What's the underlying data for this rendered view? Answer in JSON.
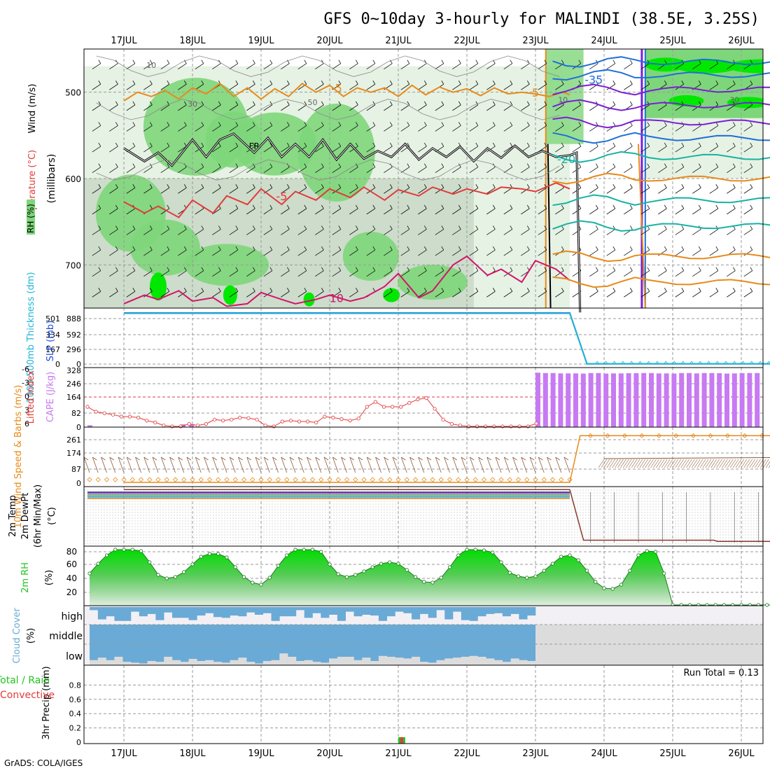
{
  "title": "GFS 0~10day 3-hourly for MALINDI (38.5E, 3.25S)",
  "footer": "GrADS: COLA/IGES",
  "colors": {
    "grid": "#9a9a9a",
    "rh_light": "#e6f2e4",
    "rh_mid": "#cddccb",
    "rh_green": "#7ed67a",
    "rh_bright": "#00e800",
    "temp_orange": "#e88a1a",
    "temp_red": "#e23b3b",
    "temp_magenta": "#d3146c",
    "temp_teal": "#17b3a3",
    "temp_blue": "#1e6fd9",
    "temp_purple": "#7a1fd6",
    "slp": "#1f4bd6",
    "thickness": "#1fb6d6",
    "cape": "#c77af2",
    "lifted": "#e23b3b",
    "wind10": "#e88a1a",
    "cloud": "#6aaad6",
    "cloud_empty": "#dcdcdc",
    "rh2m": "#22c322",
    "precip_total": "#22c322",
    "precip_conv": "#e23b3b"
  },
  "chart_data": [
    {
      "type": "heatmap",
      "panel": "upper_air",
      "x_dates": [
        "17JUL",
        "18JUL",
        "19JUL",
        "20JUL",
        "21JUL",
        "22JUL",
        "23JUL",
        "24JUL",
        "25JUL",
        "26JUL"
      ],
      "ylabel": "(millibars)",
      "side_labels": [
        "Wind (m/s)",
        "Temperature (°C)",
        "RH (%)"
      ],
      "y_ticks": [
        500,
        600,
        700
      ],
      "ylim": [
        750,
        450
      ],
      "contour_labels": {
        "temperature": [
          "-5",
          "5",
          "-5",
          "10",
          "-35",
          "-20"
        ],
        "rh": [
          "10",
          "30",
          "50",
          "10",
          "30"
        ],
        "freezing": "FR"
      },
      "series": [
        {
          "name": "FR",
          "x_days": [
            0,
            0.3,
            0.5,
            0.7,
            1,
            1.2,
            1.4,
            1.6,
            1.9,
            2.1,
            2.3,
            2.5,
            2.7,
            2.9,
            3.1,
            3.3,
            3.5,
            3.7,
            3.9,
            4.1,
            4.3,
            4.5,
            4.7,
            4.9,
            5.1,
            5.3,
            5.5,
            5.7,
            5.9,
            6.1,
            6.3,
            6.5,
            6.6,
            6.65
          ],
          "values": [
            565,
            580,
            570,
            585,
            555,
            575,
            555,
            548,
            570,
            553,
            575,
            560,
            575,
            555,
            578,
            560,
            577,
            568,
            575,
            560,
            578,
            565,
            575,
            563,
            580,
            565,
            576,
            562,
            575,
            568,
            575,
            573,
            570,
            755
          ]
        },
        {
          "name": "-5",
          "x_days": [
            0,
            0.2,
            0.4,
            0.6,
            0.8,
            1,
            1.2,
            1.4,
            1.6,
            1.8,
            2,
            2.2,
            2.4,
            2.6,
            2.8,
            3,
            3.2,
            3.4,
            3.6,
            3.8,
            4,
            4.2,
            4.4,
            4.6,
            4.8,
            5,
            5.2,
            5.4,
            5.6,
            5.8,
            6,
            6.2,
            6.4,
            6.5
          ],
          "values": [
            510,
            500,
            505,
            498,
            508,
            495,
            502,
            490,
            505,
            495,
            508,
            496,
            505,
            490,
            500,
            492,
            505,
            495,
            500,
            495,
            505,
            492,
            503,
            494,
            500,
            496,
            504,
            495,
            502,
            500,
            502,
            505,
            500,
            503
          ]
        },
        {
          "name": "-5b",
          "x_days": [
            0,
            0.3,
            0.5,
            0.8,
            1,
            1.3,
            1.5,
            1.8,
            2,
            2.3,
            2.5,
            2.8,
            3,
            3.3,
            3.5,
            3.8,
            4,
            4.3,
            4.5,
            4.8,
            5,
            5.3,
            5.5,
            5.8,
            6,
            6.3,
            6.5
          ],
          "values": [
            627,
            640,
            632,
            645,
            625,
            640,
            620,
            630,
            612,
            630,
            615,
            625,
            612,
            622,
            610,
            625,
            613,
            620,
            610,
            618,
            612,
            618,
            610,
            612,
            615,
            605,
            612
          ]
        },
        {
          "name": "10",
          "x_days": [
            0,
            0.3,
            0.5,
            0.8,
            1,
            1.3,
            1.5,
            1.8,
            2,
            2.3,
            2.5,
            2.8,
            3,
            3.3,
            3.5,
            3.8,
            4,
            4.3,
            4.5,
            4.8,
            5,
            5.3,
            5.5,
            5.8,
            6,
            6.3,
            6.5
          ],
          "values": [
            745,
            735,
            740,
            730,
            742,
            738,
            748,
            745,
            732,
            740,
            745,
            740,
            735,
            742,
            738,
            725,
            710,
            738,
            730,
            700,
            690,
            712,
            705,
            720,
            695,
            705,
            718
          ]
        }
      ],
      "right_block_series": [
        {
          "name": "-35",
          "y": 465
        },
        {
          "name": "-35b",
          "y": 480
        },
        {
          "name": "-30",
          "y": 497
        },
        {
          "name": "-30b",
          "y": 515
        },
        {
          "name": "-25",
          "y": 535
        },
        {
          "name": "-25b",
          "y": 553
        },
        {
          "name": "-20",
          "y": 575
        },
        {
          "name": "-15",
          "y": 600
        },
        {
          "name": "-10",
          "y": 625
        },
        {
          "name": "-5",
          "y": 655
        },
        {
          "name": "0",
          "y": 690
        },
        {
          "name": "5",
          "y": 720
        }
      ]
    },
    {
      "type": "line",
      "panel": "slp_thickness",
      "ylabel_left": "1000-500mb Thickness (dm)",
      "ylabel_right": "SLP (mb)",
      "left_ticks": [
        "501",
        "334",
        "167",
        "0"
      ],
      "right_ticks": [
        "888",
        "592",
        "296",
        "0"
      ],
      "ylim": [
        0,
        1000
      ],
      "series": [
        {
          "name": "SLP",
          "x_days": [
            0,
            6.5,
            6.75,
            10
          ],
          "values": [
            1012,
            1012,
            5,
            5
          ]
        },
        {
          "name": "Thickness",
          "x_days": [
            0,
            6.5,
            6.75,
            10
          ],
          "values": [
            1005,
            1005,
            6,
            6
          ]
        }
      ]
    },
    {
      "type": "bar",
      "panel": "cape_lifted",
      "ylabel_left": "Lifted Index",
      "ylabel_right": "CAPE (J/kg)",
      "left_ticks": [
        "-6",
        "-3",
        "0",
        "3",
        "6"
      ],
      "right_ticks": [
        "328",
        "246",
        "164",
        "82",
        "0"
      ],
      "ylim_cape": [
        0,
        328
      ],
      "lifted_index": [
        2,
        3,
        3.3,
        3.6,
        4,
        4,
        4.2,
        4.8,
        5.2,
        5.8,
        6,
        6,
        5.5,
        5.8,
        5.5,
        4.6,
        4.8,
        4.6,
        4.2,
        4.3,
        4.6,
        5.8,
        6,
        5,
        4.8,
        5,
        5,
        5.2,
        4,
        4.2,
        4.5,
        4.8,
        4.4,
        2,
        1,
        2,
        2,
        2,
        1.2,
        0.5,
        0.2,
        2.4,
        4.6,
        5.5,
        5.8,
        6,
        6,
        6,
        6,
        6,
        6,
        6,
        6,
        5.4
      ],
      "cape_left": [
        10,
        0,
        0,
        0,
        0,
        0,
        0,
        0,
        0,
        0,
        0,
        15,
        15,
        0,
        0,
        0,
        0,
        0,
        0,
        0,
        0,
        0,
        0,
        0,
        0,
        0,
        0,
        0,
        0,
        0,
        0,
        0,
        0,
        0,
        0,
        0,
        0,
        0,
        0,
        0,
        0,
        0,
        0,
        0,
        0,
        0,
        0,
        0,
        0,
        0,
        0,
        0,
        0,
        5
      ],
      "cape_right": [
        300,
        298,
        298,
        296,
        296,
        296,
        295,
        298,
        298,
        295,
        296,
        296,
        297,
        297,
        298,
        298,
        296,
        296,
        295,
        298,
        298,
        296,
        298,
        298,
        297,
        295,
        296,
        297,
        298,
        298
      ]
    },
    {
      "type": "line",
      "panel": "wind10m",
      "ylabel": "10m Wind Speed & Barbs (m/s)",
      "ticks": [
        "261",
        "174",
        "87",
        "0"
      ],
      "ylim": [
        0,
        290
      ],
      "series": [
        {
          "name": "speed",
          "x_days": [
            0,
            6.5,
            6.65,
            10.3
          ],
          "values": [
            4,
            4,
            255,
            255
          ]
        }
      ]
    },
    {
      "type": "line",
      "panel": "temp2m",
      "ylabel": "2m Temp 2m DewPt (6hr Min/Max) (°C)",
      "series": [
        {
          "name": "temp",
          "x_days": [
            0,
            6.5,
            6.7,
            8.6,
            8.65,
            10.3
          ],
          "values": [
            0.95,
            0.95,
            0.1,
            0.1,
            0.08,
            0.08
          ]
        }
      ]
    },
    {
      "type": "area",
      "panel": "rh2m",
      "ylabel": "2m RH (%)",
      "ticks": [
        "80",
        "60",
        "40",
        "20"
      ],
      "ylim": [
        0,
        85
      ],
      "x_days_step": 0.125,
      "values": [
        46,
        60,
        72,
        80,
        80,
        80,
        78,
        62,
        44,
        39,
        41,
        48,
        59,
        70,
        74,
        74,
        69,
        55,
        41,
        33,
        30,
        40,
        57,
        72,
        80,
        80,
        80,
        77,
        59,
        45,
        41,
        44,
        49,
        55,
        60,
        62,
        60,
        51,
        41,
        34,
        33,
        40,
        55,
        72,
        80,
        80,
        79,
        76,
        62,
        47,
        42,
        40,
        42,
        50,
        60,
        70,
        72,
        65,
        50,
        34,
        25,
        24,
        30,
        50,
        72,
        78,
        77,
        46,
        1,
        1,
        1,
        1,
        1,
        1,
        1,
        1,
        1,
        1,
        1,
        1,
        1,
        1,
        1
      ]
    },
    {
      "type": "bar",
      "panel": "cloud_cover",
      "ylabel": "Cloud Cover (%)",
      "labels": [
        "high",
        "middle",
        "low"
      ],
      "high": [
        20,
        80,
        60,
        90,
        90,
        30,
        60,
        45,
        85,
        35,
        70,
        70,
        85,
        55,
        40,
        65,
        70,
        55,
        60,
        35,
        50,
        40,
        90,
        60,
        60,
        20,
        70,
        40,
        70,
        50,
        90,
        30,
        60,
        50,
        55,
        90,
        60,
        30,
        40,
        80,
        45,
        70,
        20,
        80,
        30,
        85,
        90,
        60,
        45,
        40,
        60,
        45,
        80,
        55
      ],
      "middle": [
        100,
        100,
        100,
        100,
        100,
        100,
        100,
        100,
        100,
        100,
        100,
        100,
        100,
        100,
        100,
        100,
        100,
        100,
        100,
        100,
        100,
        100,
        100,
        100,
        100,
        100,
        100,
        100,
        100,
        100,
        100,
        100,
        100,
        100,
        100,
        100,
        100,
        100,
        100,
        100,
        100,
        100,
        100,
        100,
        100,
        100,
        100,
        100,
        100,
        100,
        100,
        100,
        100,
        100
      ],
      "low": [
        12,
        18,
        12,
        20,
        8,
        6,
        4,
        10,
        8,
        20,
        12,
        8,
        15,
        10,
        12,
        8,
        6,
        12,
        18,
        8,
        4,
        10,
        12,
        28,
        20,
        10,
        12,
        8,
        6,
        16,
        20,
        20,
        12,
        18,
        10,
        22,
        20,
        18,
        16,
        20,
        8,
        6,
        12,
        16,
        18,
        20,
        22,
        20,
        16,
        12,
        8,
        16,
        12,
        10
      ]
    },
    {
      "type": "bar",
      "panel": "precip",
      "ylabel": "3hr Precip (mm)",
      "side_labels": [
        "Total / Rain",
        "Convective"
      ],
      "ticks": [
        "0.8",
        "0.6",
        "0.4",
        "0.2",
        "0"
      ],
      "ylim": [
        0,
        1.0
      ],
      "annotation": "Run Total = 0.13",
      "bars": [
        {
          "x_day": 4.05,
          "total": 0.07,
          "convective": 0.07
        },
        {
          "x_day": 10.25,
          "total": 0.06,
          "convective": 0.0
        }
      ]
    }
  ]
}
